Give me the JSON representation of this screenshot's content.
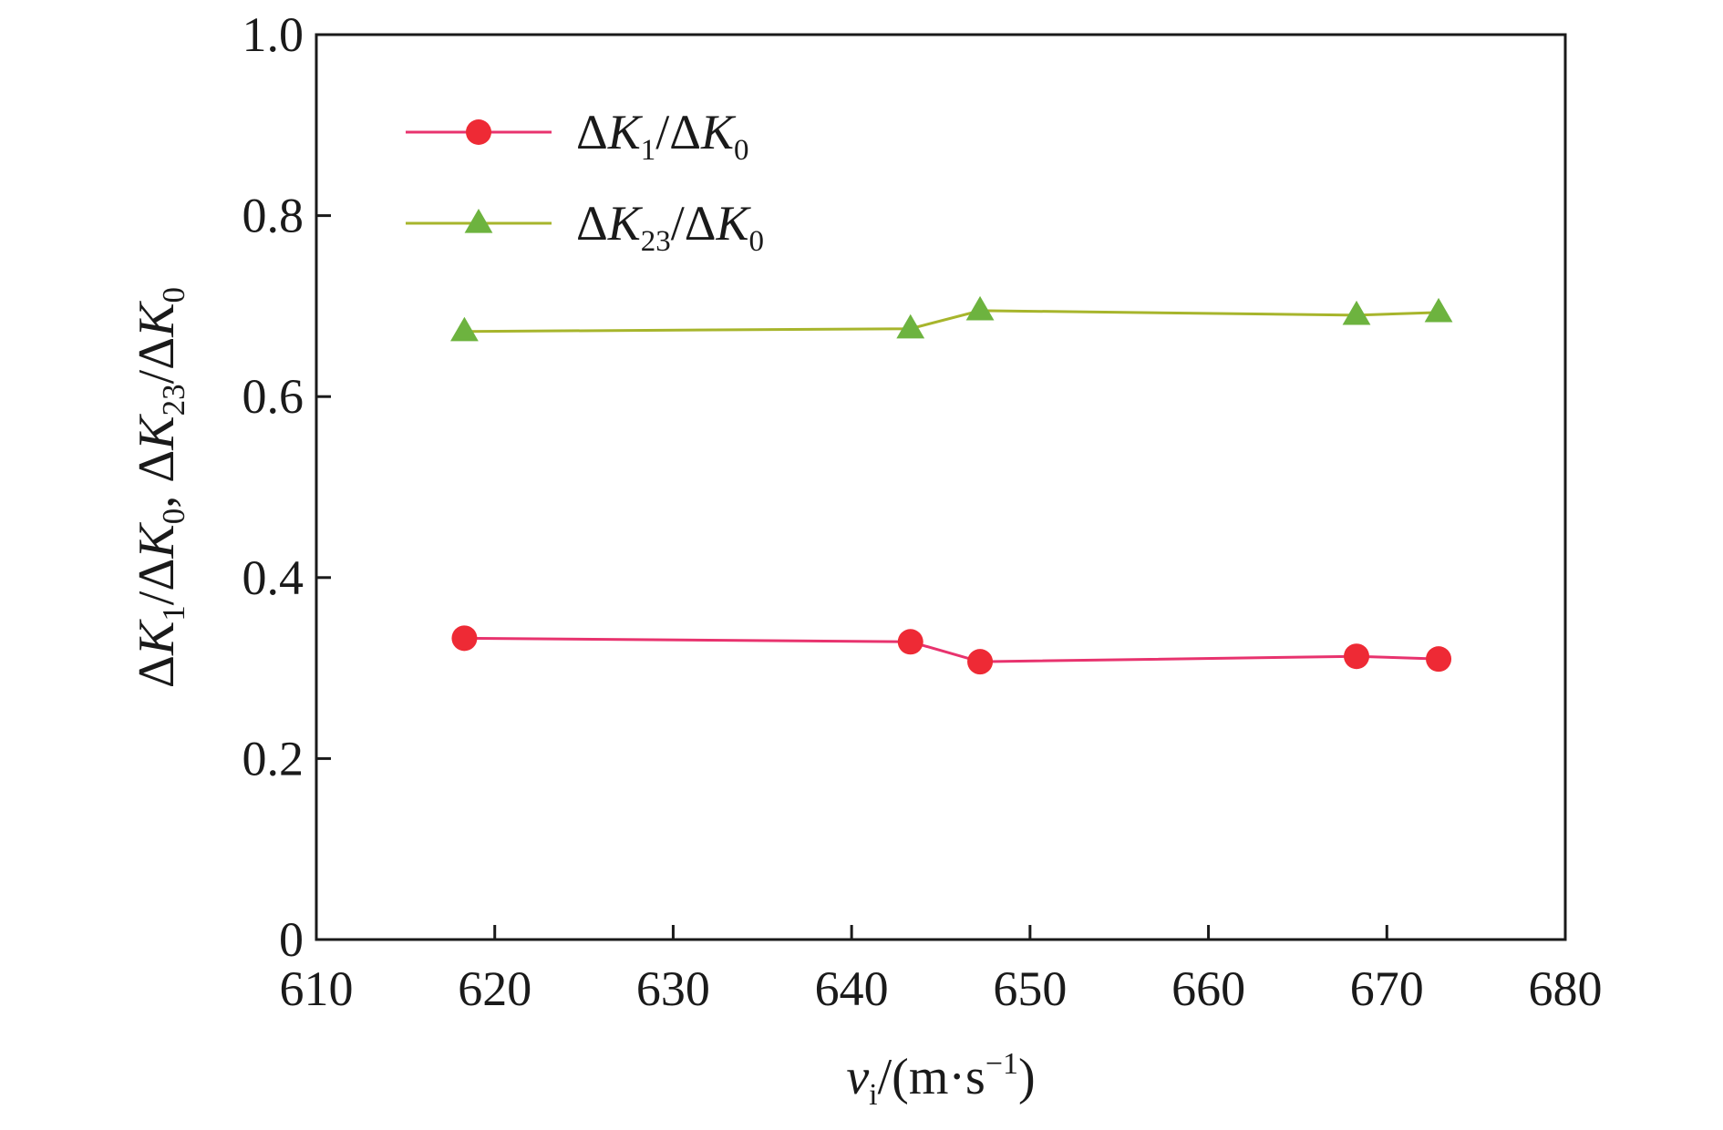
{
  "chart_data": {
    "type": "line",
    "x_axis": {
      "label_main": "v",
      "label_sub": "i",
      "label_unit_open": "/(m·s",
      "label_unit_sup": "−1",
      "label_unit_close": ")",
      "range": [
        610,
        680
      ],
      "ticks": [
        610,
        620,
        630,
        640,
        650,
        660,
        670,
        680
      ],
      "tick_labels": [
        "610",
        "620",
        "630",
        "640",
        "650",
        "660",
        "670",
        "680"
      ]
    },
    "y_axis": {
      "label_parts": [
        {
          "t": "ΔK",
          "k": "n"
        },
        {
          "t": "1",
          "k": "sub"
        },
        {
          "t": "/ΔK",
          "k": "n"
        },
        {
          "t": "0",
          "k": "sub"
        },
        {
          "t": ", ΔK",
          "k": "n"
        },
        {
          "t": "23",
          "k": "sub"
        },
        {
          "t": "/ΔK",
          "k": "n"
        },
        {
          "t": "0",
          "k": "sub"
        }
      ],
      "range": [
        0,
        1.0
      ],
      "ticks": [
        0,
        0.2,
        0.4,
        0.6,
        0.8,
        1.0
      ],
      "tick_labels": [
        "0",
        "0.2",
        "0.4",
        "0.6",
        "0.8",
        "1.0"
      ]
    },
    "legend_position": "top-left",
    "series": [
      {
        "legend_parts": [
          {
            "t": "ΔK",
            "k": "n"
          },
          {
            "t": "1",
            "k": "sub"
          },
          {
            "t": "/ΔK",
            "k": "n"
          },
          {
            "t": "0",
            "k": "sub"
          }
        ],
        "line_color": "#e8336e",
        "marker_color": "#ee2a35",
        "marker": "circle",
        "x": [
          618.3,
          643.3,
          647.2,
          668.3,
          672.9
        ],
        "y": [
          0.333,
          0.329,
          0.307,
          0.313,
          0.31
        ]
      },
      {
        "legend_parts": [
          {
            "t": "ΔK",
            "k": "n"
          },
          {
            "t": "23",
            "k": "sub"
          },
          {
            "t": "/ΔK",
            "k": "n"
          },
          {
            "t": "0",
            "k": "sub"
          }
        ],
        "line_color": "#a7b52c",
        "marker_color": "#6db33f",
        "marker": "triangle",
        "x": [
          618.3,
          643.3,
          647.2,
          668.3,
          672.9
        ],
        "y": [
          0.672,
          0.675,
          0.695,
          0.69,
          0.693
        ]
      }
    ]
  }
}
